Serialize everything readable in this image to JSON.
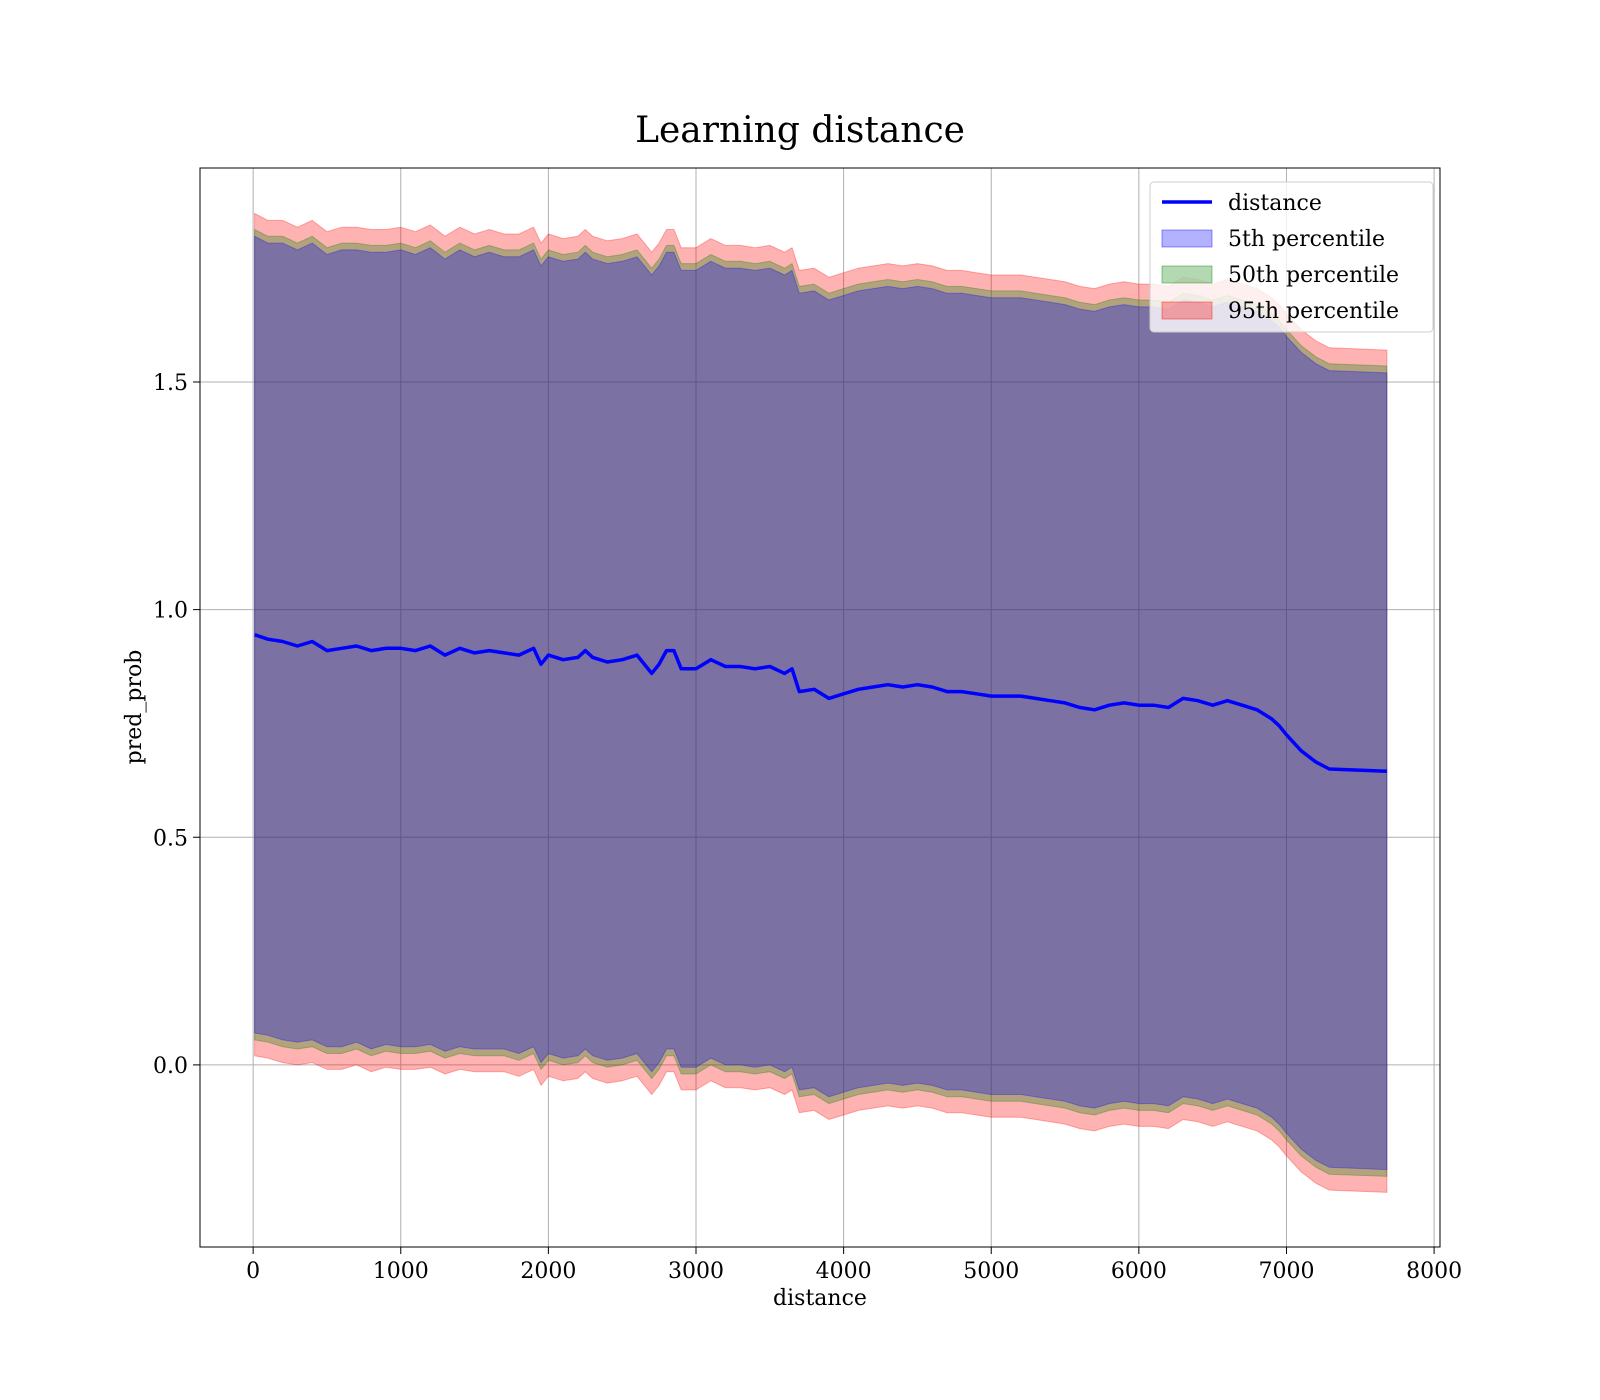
{
  "chart_data": {
    "type": "area",
    "title": "Learning distance",
    "xlabel": "distance",
    "ylabel": "pred_prob",
    "xlim": [
      -360,
      8040
    ],
    "ylim": [
      -0.4,
      1.97
    ],
    "xticks": [
      0,
      1000,
      2000,
      3000,
      4000,
      5000,
      6000,
      7000,
      8000
    ],
    "xtick_labels": [
      "0",
      "1000",
      "2000",
      "3000",
      "4000",
      "5000",
      "6000",
      "7000",
      "8000"
    ],
    "yticks": [
      0.0,
      0.5,
      1.0,
      1.5
    ],
    "ytick_labels": [
      "0.0",
      "0.5",
      "1.0",
      "1.5"
    ],
    "grid": true,
    "legend_position": "top-right",
    "x": [
      10,
      100,
      200,
      300,
      400,
      500,
      600,
      700,
      800,
      900,
      1000,
      1100,
      1200,
      1300,
      1400,
      1500,
      1600,
      1700,
      1800,
      1900,
      1950,
      2000,
      2100,
      2200,
      2250,
      2300,
      2400,
      2500,
      2600,
      2700,
      2750,
      2800,
      2850,
      2900,
      3000,
      3100,
      3200,
      3300,
      3400,
      3500,
      3600,
      3650,
      3700,
      3800,
      3900,
      4000,
      4100,
      4200,
      4300,
      4400,
      4500,
      4600,
      4700,
      4800,
      4900,
      5000,
      5100,
      5200,
      5300,
      5400,
      5500,
      5600,
      5700,
      5800,
      5900,
      6000,
      6100,
      6200,
      6300,
      6400,
      6500,
      6600,
      6700,
      6800,
      6900,
      6950,
      7000,
      7100,
      7200,
      7290,
      7680
    ],
    "series": [
      {
        "name": "distance",
        "kind": "line",
        "color": "#0000ff",
        "values": [
          0.945,
          0.935,
          0.93,
          0.92,
          0.93,
          0.91,
          0.915,
          0.92,
          0.91,
          0.915,
          0.915,
          0.91,
          0.92,
          0.9,
          0.915,
          0.905,
          0.91,
          0.905,
          0.9,
          0.915,
          0.88,
          0.9,
          0.89,
          0.895,
          0.91,
          0.895,
          0.885,
          0.89,
          0.9,
          0.86,
          0.88,
          0.91,
          0.91,
          0.87,
          0.87,
          0.89,
          0.875,
          0.875,
          0.87,
          0.875,
          0.86,
          0.87,
          0.82,
          0.825,
          0.805,
          0.815,
          0.825,
          0.83,
          0.835,
          0.83,
          0.835,
          0.83,
          0.82,
          0.82,
          0.815,
          0.81,
          0.81,
          0.81,
          0.805,
          0.8,
          0.795,
          0.785,
          0.78,
          0.79,
          0.795,
          0.79,
          0.79,
          0.785,
          0.805,
          0.8,
          0.79,
          0.8,
          0.79,
          0.78,
          0.76,
          0.745,
          0.725,
          0.69,
          0.665,
          0.65,
          0.645
        ]
      },
      {
        "name": "5th percentile",
        "kind": "band",
        "color": "#0000ff",
        "opacity": 0.3,
        "half_width": [
          0.875,
          0.87,
          0.875,
          0.87,
          0.875,
          0.87,
          0.875,
          0.87,
          0.875,
          0.87,
          0.875,
          0.87,
          0.875,
          0.87,
          0.875,
          0.87,
          0.875,
          0.87,
          0.875,
          0.875,
          0.875,
          0.875,
          0.875,
          0.875,
          0.875,
          0.875,
          0.875,
          0.875,
          0.875,
          0.875,
          0.875,
          0.875,
          0.875,
          0.875,
          0.875,
          0.875,
          0.875,
          0.875,
          0.875,
          0.875,
          0.875,
          0.875,
          0.875,
          0.875,
          0.875,
          0.875,
          0.875,
          0.875,
          0.875,
          0.875,
          0.875,
          0.875,
          0.875,
          0.875,
          0.875,
          0.875,
          0.875,
          0.875,
          0.875,
          0.875,
          0.875,
          0.875,
          0.875,
          0.875,
          0.875,
          0.875,
          0.875,
          0.875,
          0.875,
          0.875,
          0.875,
          0.875,
          0.875,
          0.875,
          0.875,
          0.875,
          0.875,
          0.875,
          0.875,
          0.875,
          0.875
        ]
      },
      {
        "name": "50th percentile",
        "kind": "band",
        "color": "#008000",
        "opacity": 0.3,
        "half_width": [
          0.89,
          0.885,
          0.89,
          0.885,
          0.89,
          0.885,
          0.89,
          0.885,
          0.89,
          0.885,
          0.89,
          0.885,
          0.89,
          0.885,
          0.89,
          0.885,
          0.89,
          0.885,
          0.89,
          0.89,
          0.89,
          0.89,
          0.89,
          0.89,
          0.89,
          0.89,
          0.89,
          0.89,
          0.89,
          0.89,
          0.89,
          0.89,
          0.89,
          0.89,
          0.89,
          0.89,
          0.89,
          0.89,
          0.89,
          0.89,
          0.89,
          0.89,
          0.89,
          0.89,
          0.89,
          0.89,
          0.89,
          0.89,
          0.89,
          0.89,
          0.89,
          0.89,
          0.89,
          0.89,
          0.89,
          0.89,
          0.89,
          0.89,
          0.89,
          0.89,
          0.89,
          0.89,
          0.89,
          0.89,
          0.89,
          0.89,
          0.89,
          0.89,
          0.89,
          0.89,
          0.89,
          0.89,
          0.89,
          0.89,
          0.89,
          0.89,
          0.89,
          0.89,
          0.89,
          0.89,
          0.89
        ]
      },
      {
        "name": "95th percentile",
        "kind": "band",
        "color": "#ff0000",
        "opacity": 0.3,
        "half_width": [
          0.925,
          0.92,
          0.925,
          0.92,
          0.925,
          0.92,
          0.925,
          0.92,
          0.925,
          0.92,
          0.925,
          0.92,
          0.925,
          0.92,
          0.925,
          0.92,
          0.925,
          0.92,
          0.925,
          0.925,
          0.925,
          0.925,
          0.925,
          0.925,
          0.925,
          0.925,
          0.925,
          0.925,
          0.925,
          0.925,
          0.925,
          0.925,
          0.925,
          0.925,
          0.925,
          0.925,
          0.925,
          0.925,
          0.925,
          0.925,
          0.925,
          0.925,
          0.925,
          0.925,
          0.925,
          0.925,
          0.925,
          0.925,
          0.925,
          0.925,
          0.925,
          0.925,
          0.925,
          0.925,
          0.925,
          0.925,
          0.925,
          0.925,
          0.925,
          0.925,
          0.925,
          0.925,
          0.925,
          0.925,
          0.925,
          0.925,
          0.925,
          0.925,
          0.925,
          0.925,
          0.925,
          0.925,
          0.925,
          0.925,
          0.925,
          0.925,
          0.925,
          0.925,
          0.925,
          0.925,
          0.925
        ]
      }
    ]
  }
}
